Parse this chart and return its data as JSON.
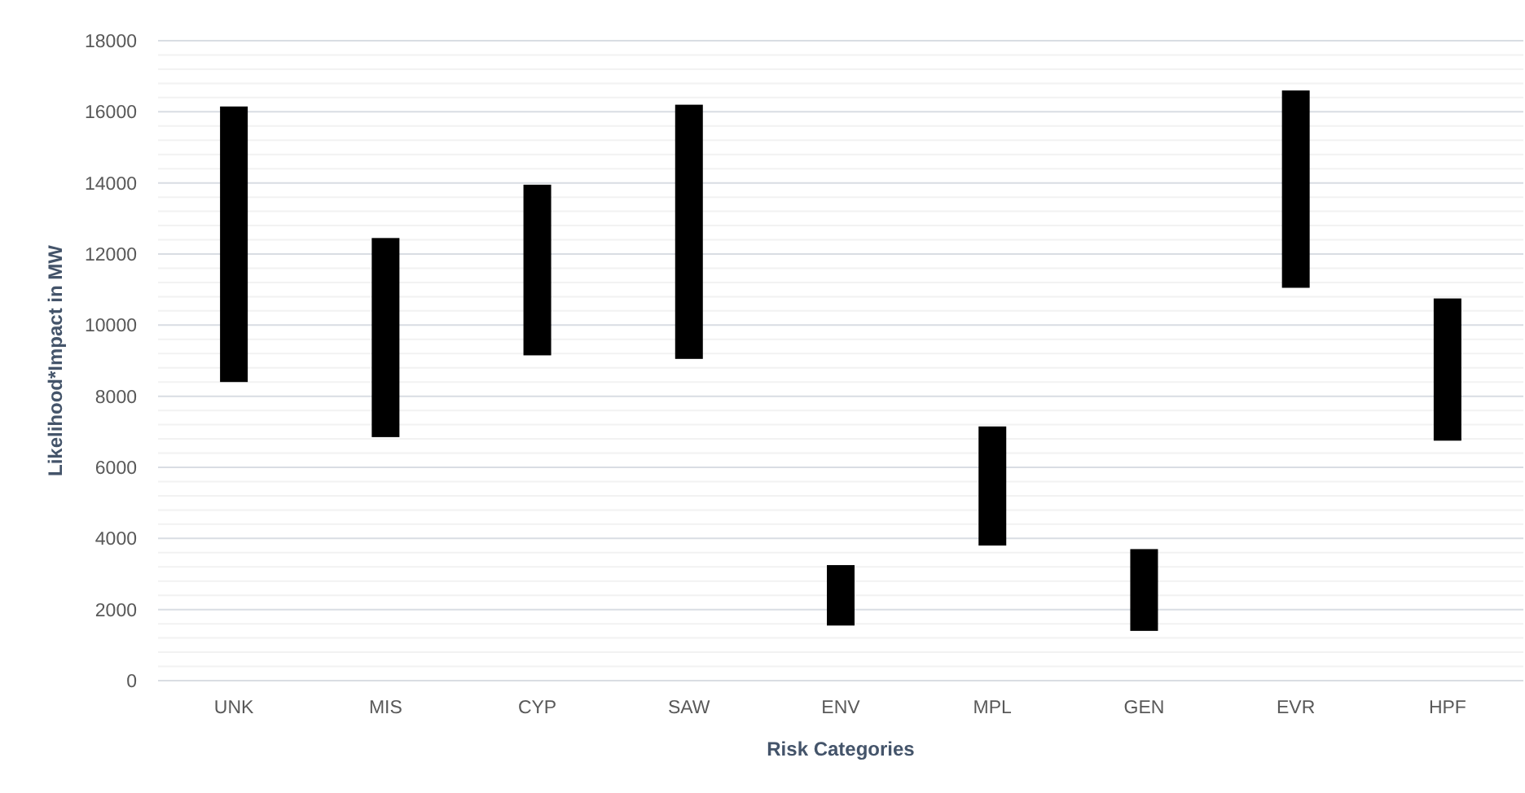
{
  "chart_data": {
    "type": "bar",
    "xlabel": "Risk Categories",
    "ylabel": "Likelihood*Impact in MW",
    "categories": [
      "UNK",
      "MIS",
      "CYP",
      "SAW",
      "ENV",
      "MPL",
      "GEN",
      "EVR",
      "HPF"
    ],
    "base": [
      8400,
      6850,
      9150,
      9050,
      1550,
      3800,
      1400,
      11050,
      6750
    ],
    "values": [
      7750,
      5600,
      4800,
      7150,
      1700,
      3350,
      2300,
      5550,
      4000
    ],
    "color": "#000000",
    "ylim": [
      0,
      18000
    ],
    "yticks": [
      0,
      {
        "value": 400,
        "label": null
      },
      {
        "value": 800,
        "label": null
      },
      {
        "value": 1200,
        "label": null
      },
      {
        "value": 1600,
        "label": null
      },
      2000,
      {
        "value": 2400,
        "label": null
      },
      {
        "value": 2800,
        "label": null
      },
      {
        "value": 3200,
        "label": null
      },
      {
        "value": 3600,
        "label": null
      },
      4000,
      {
        "value": 4400,
        "label": null
      },
      {
        "value": 4800,
        "label": null
      },
      {
        "value": 5200,
        "label": null
      },
      {
        "value": 5600,
        "label": null
      },
      6000,
      {
        "value": 6400,
        "label": null
      },
      {
        "value": 6800,
        "label": null
      },
      {
        "value": 7200,
        "label": null
      },
      {
        "value": 7600,
        "label": null
      },
      8000,
      {
        "value": 8400,
        "label": null
      },
      {
        "value": 8800,
        "label": null
      },
      {
        "value": 9200,
        "label": null
      },
      {
        "value": 9600,
        "label": null
      },
      10000,
      {
        "value": 10400,
        "label": null
      },
      {
        "value": 10800,
        "label": null
      },
      {
        "value": 11200,
        "label": null
      },
      {
        "value": 11600,
        "label": null
      },
      12000,
      {
        "value": 12400,
        "label": null
      },
      {
        "value": 12800,
        "label": null
      },
      {
        "value": 13200,
        "label": null
      },
      {
        "value": 13600,
        "label": null
      },
      14000,
      {
        "value": 14400,
        "label": null
      },
      {
        "value": 14800,
        "label": null
      },
      {
        "value": 15200,
        "label": null
      },
      {
        "value": 15600,
        "label": null
      },
      16000,
      {
        "value": 16400,
        "label": null
      },
      {
        "value": 16800,
        "label": null
      },
      {
        "value": 17200,
        "label": null
      },
      {
        "value": 17600,
        "label": null
      },
      18000
    ],
    "grid": "y"
  }
}
